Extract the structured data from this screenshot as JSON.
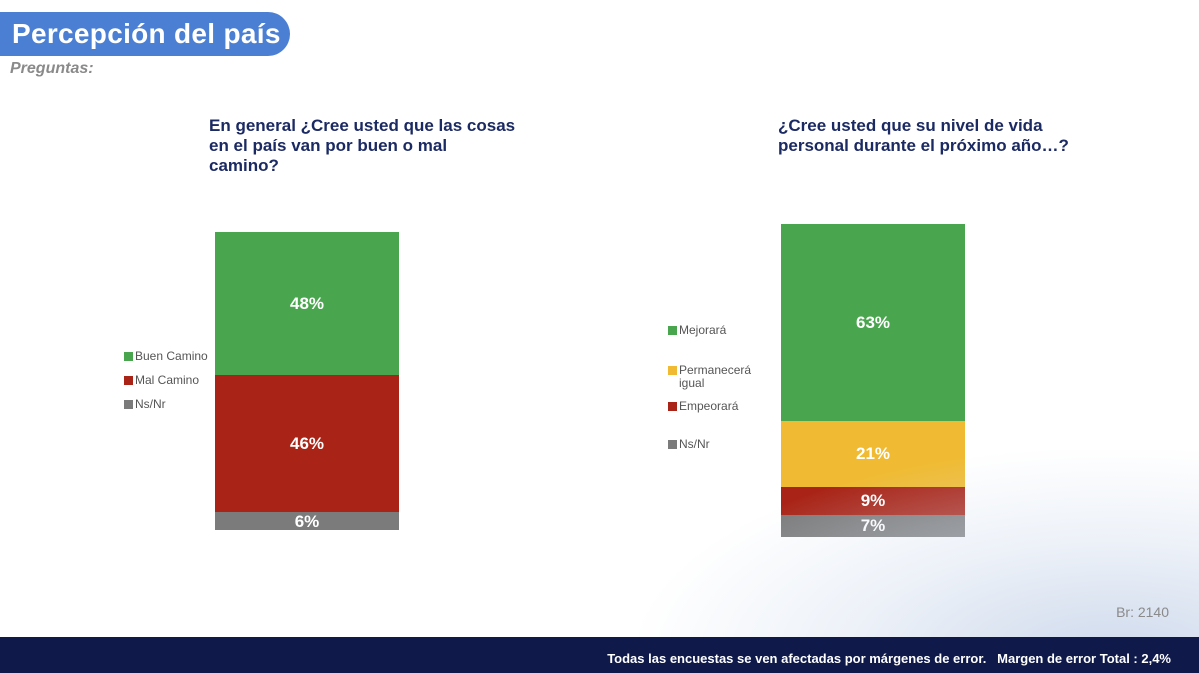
{
  "header": {
    "title": "Percepción del país",
    "subtitle": "Preguntas:"
  },
  "chart_data": [
    {
      "type": "bar",
      "stacked": true,
      "title": "En general ¿Cree usted que las cosas en el país van por buen o mal camino?",
      "title_lines": [
        "En general ¿Cree usted que las cosas",
        "en el país van por buen o mal",
        "camino?"
      ],
      "ylim": [
        0,
        100
      ],
      "series": [
        {
          "name": "Buen Camino",
          "value": 48,
          "label": "48%",
          "color": "#4aa64e"
        },
        {
          "name": "Mal Camino",
          "value": 46,
          "label": "46%",
          "color": "#a92417"
        },
        {
          "name": "Ns/Nr",
          "value": 6,
          "label": "6%",
          "color": "#7b7b7b"
        }
      ],
      "legend": [
        "Buen Camino",
        "Mal Camino",
        "Ns/Nr"
      ]
    },
    {
      "type": "bar",
      "stacked": true,
      "title": "¿Cree usted que su nivel de vida personal durante el próximo año…?",
      "title_lines": [
        "¿Cree usted que su nivel de vida",
        "personal durante el próximo año…?"
      ],
      "ylim": [
        0,
        100
      ],
      "series": [
        {
          "name": "Mejorará",
          "value": 63,
          "label": "63%",
          "color": "#4aa64e"
        },
        {
          "name": "Permanecerá igual",
          "value": 21,
          "label": "21%",
          "color": "#f0bb33"
        },
        {
          "name": "Empeorará",
          "value": 9,
          "label": "9%",
          "color": "#a92417"
        },
        {
          "name": "Ns/Nr",
          "value": 7,
          "label": "7%",
          "color": "#7b7b7b"
        }
      ],
      "legend": [
        "Mejorará",
        "Permanecerá igual",
        "Empeorará",
        "Ns/Nr"
      ]
    }
  ],
  "base_note": "Br: 2140",
  "footer": {
    "text": "Todas las encuestas se ven afectadas por márgenes de error.   Margen de error Total : 2,4%"
  }
}
